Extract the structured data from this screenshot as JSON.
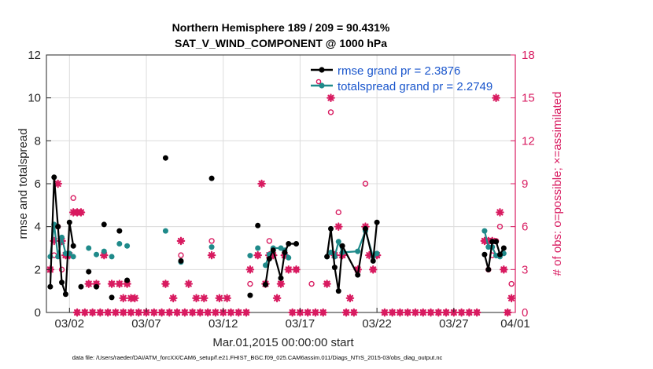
{
  "colors": {
    "rmse": "#000000",
    "spread": "#1f8a8a",
    "obs": "#d81b60",
    "legend_text": "#1a56cc",
    "left_axis": "#262626",
    "grid": "#dcdcdc"
  },
  "chart_data": {
    "type": "line",
    "title": "Northern Hemisphere 189 / 209 = 90.431%",
    "subtitle": "SAT_V_WIND_COMPONENT @ 1000 hPa",
    "xlabel": "Mar.01,2015 00:00:00 start",
    "ylabel_left": "rmse and totalspread",
    "ylabel_right": "# of obs: o=possible; ×=assimilated",
    "footer": "data file: /Users/raeder/DAI/ATM_forcXX/CAM6_setup/f.e21.FHIST_BGC.f09_025.CAM6assim.011/Diags_NTrS_2015-03/obs_diag_output.nc",
    "xlim": [
      0.5,
      31.0
    ],
    "ylim_left": [
      0,
      12
    ],
    "ylim_right": [
      0,
      18
    ],
    "grid": true,
    "xticks": [
      {
        "x": 2,
        "label": "03/02"
      },
      {
        "x": 7,
        "label": "03/07"
      },
      {
        "x": 12,
        "label": "03/12"
      },
      {
        "x": 17,
        "label": "03/17"
      },
      {
        "x": 22,
        "label": "03/22"
      },
      {
        "x": 27,
        "label": "03/27"
      },
      {
        "x": 31,
        "label": "04/01"
      }
    ],
    "yticks_left": [
      0,
      2,
      4,
      6,
      8,
      10,
      12
    ],
    "yticks_right": [
      0,
      3,
      6,
      9,
      12,
      15,
      18
    ],
    "legend": [
      {
        "label": "rmse grand pr = 2.3876"
      },
      {
        "label": "totalspread grand pr = 2.2749"
      }
    ],
    "legend_position": "top-right",
    "series": [
      {
        "name": "rmse grand pr = 2.3876",
        "axis": "left",
        "marker": "filled-circle",
        "points": [
          [
            0.75,
            1.2
          ],
          [
            1.0,
            6.3
          ],
          [
            1.25,
            4.0
          ],
          [
            1.5,
            1.4
          ],
          [
            1.75,
            0.85
          ],
          [
            2.0,
            4.2
          ],
          [
            2.25,
            3.1
          ],
          [
            2.75,
            1.2
          ],
          [
            3.25,
            1.9
          ],
          [
            3.75,
            1.2
          ],
          [
            4.25,
            4.1
          ],
          [
            4.75,
            0.7
          ],
          [
            5.25,
            3.8
          ],
          [
            5.75,
            1.5
          ],
          [
            8.25,
            7.2
          ],
          [
            9.25,
            2.4
          ],
          [
            11.25,
            6.25
          ],
          [
            13.75,
            0.8
          ],
          [
            14.25,
            4.05
          ],
          [
            14.75,
            1.3
          ],
          [
            15.0,
            2.5
          ],
          [
            15.25,
            2.9
          ],
          [
            15.75,
            1.6
          ],
          [
            16.0,
            2.8
          ],
          [
            16.25,
            3.2
          ],
          [
            16.75,
            3.2
          ],
          [
            18.75,
            2.6
          ],
          [
            19.0,
            3.9
          ],
          [
            19.25,
            2.1
          ],
          [
            19.5,
            1.0
          ],
          [
            19.75,
            3.1
          ],
          [
            20.75,
            1.75
          ],
          [
            21.25,
            3.9
          ],
          [
            21.75,
            2.4
          ],
          [
            22.0,
            4.2
          ],
          [
            29.0,
            2.7
          ],
          [
            29.25,
            2.0
          ],
          [
            29.5,
            3.3
          ],
          [
            29.75,
            3.3
          ],
          [
            30.0,
            2.7
          ],
          [
            30.25,
            3.0
          ]
        ],
        "connected_runs": [
          [
            0,
            6
          ],
          [
            19,
            25
          ],
          [
            26,
            34
          ],
          [
            35,
            40
          ]
        ]
      },
      {
        "name": "totalspread grand pr = 2.2749",
        "axis": "left",
        "marker": "filled-circle",
        "points": [
          [
            0.75,
            2.6
          ],
          [
            1.0,
            4.1
          ],
          [
            1.25,
            2.6
          ],
          [
            1.5,
            3.5
          ],
          [
            1.75,
            2.75
          ],
          [
            2.0,
            2.75
          ],
          [
            2.25,
            2.6
          ],
          [
            3.25,
            3.0
          ],
          [
            3.75,
            2.7
          ],
          [
            4.25,
            2.85
          ],
          [
            4.75,
            2.6
          ],
          [
            5.25,
            3.2
          ],
          [
            5.75,
            3.1
          ],
          [
            8.25,
            3.8
          ],
          [
            9.25,
            2.35
          ],
          [
            11.25,
            3.05
          ],
          [
            13.75,
            2.65
          ],
          [
            14.25,
            3.0
          ],
          [
            14.75,
            2.2
          ],
          [
            15.0,
            2.7
          ],
          [
            15.25,
            3.0
          ],
          [
            15.75,
            3.0
          ],
          [
            16.0,
            2.9
          ],
          [
            16.25,
            2.55
          ],
          [
            18.75,
            2.6
          ],
          [
            19.0,
            2.8
          ],
          [
            19.25,
            2.6
          ],
          [
            19.5,
            3.3
          ],
          [
            19.75,
            2.8
          ],
          [
            20.75,
            2.85
          ],
          [
            21.25,
            3.8
          ],
          [
            21.75,
            2.6
          ],
          [
            22.0,
            2.75
          ],
          [
            29.0,
            3.8
          ],
          [
            29.25,
            3.05
          ],
          [
            29.5,
            3.05
          ],
          [
            29.75,
            2.65
          ],
          [
            30.0,
            2.6
          ],
          [
            30.25,
            2.75
          ]
        ],
        "connected_runs": [
          [
            0,
            6
          ],
          [
            18,
            23
          ],
          [
            24,
            32
          ],
          [
            33,
            38
          ]
        ]
      },
      {
        "name": "possible",
        "axis": "right",
        "marker": "open-circle",
        "points": [
          [
            0.75,
            3
          ],
          [
            1.0,
            4
          ],
          [
            1.25,
            6
          ],
          [
            1.5,
            3
          ],
          [
            1.75,
            4
          ],
          [
            2.0,
            4
          ],
          [
            2.25,
            8
          ],
          [
            2.75,
            7
          ],
          [
            3.25,
            2
          ],
          [
            3.75,
            2
          ],
          [
            4.25,
            4
          ],
          [
            4.75,
            2
          ],
          [
            5.25,
            2
          ],
          [
            5.75,
            2
          ],
          [
            8.25,
            2
          ],
          [
            9.25,
            4
          ],
          [
            11.25,
            5
          ],
          [
            13.75,
            2
          ],
          [
            14.25,
            4
          ],
          [
            14.75,
            2
          ],
          [
            15.0,
            5
          ],
          [
            15.25,
            4
          ],
          [
            15.75,
            2
          ],
          [
            16.0,
            4
          ],
          [
            16.25,
            3
          ],
          [
            16.75,
            3
          ],
          [
            17.75,
            2
          ],
          [
            18.75,
            2
          ],
          [
            19.0,
            14
          ],
          [
            19.25,
            4
          ],
          [
            19.5,
            7
          ],
          [
            19.75,
            4
          ],
          [
            20.75,
            3
          ],
          [
            21.25,
            9
          ],
          [
            21.75,
            3
          ],
          [
            22.0,
            4
          ],
          [
            29.0,
            5
          ],
          [
            29.25,
            3
          ],
          [
            29.5,
            4
          ],
          [
            29.75,
            5
          ],
          [
            30.0,
            6
          ],
          [
            30.25,
            3
          ],
          [
            30.75,
            2
          ]
        ]
      },
      {
        "name": "assimilated",
        "axis": "right",
        "marker": "asterisk",
        "points": [
          [
            0.75,
            3
          ],
          [
            1.0,
            5
          ],
          [
            1.25,
            9
          ],
          [
            1.5,
            5
          ],
          [
            1.75,
            4
          ],
          [
            2.0,
            4
          ],
          [
            2.25,
            7
          ],
          [
            2.5,
            7
          ],
          [
            2.75,
            7
          ],
          [
            3.25,
            2
          ],
          [
            3.75,
            2
          ],
          [
            4.25,
            4
          ],
          [
            4.75,
            2
          ],
          [
            5.25,
            2
          ],
          [
            5.5,
            1
          ],
          [
            5.75,
            2
          ],
          [
            6.0,
            1
          ],
          [
            6.25,
            1
          ],
          [
            8.25,
            2
          ],
          [
            8.75,
            1
          ],
          [
            9.25,
            5
          ],
          [
            9.75,
            2
          ],
          [
            10.25,
            1
          ],
          [
            10.75,
            1
          ],
          [
            11.25,
            4
          ],
          [
            11.75,
            1
          ],
          [
            12.25,
            1
          ],
          [
            13.75,
            3
          ],
          [
            14.25,
            4
          ],
          [
            14.5,
            9
          ],
          [
            14.75,
            2
          ],
          [
            15.0,
            4
          ],
          [
            15.25,
            4
          ],
          [
            15.5,
            1
          ],
          [
            15.75,
            2
          ],
          [
            16.0,
            4
          ],
          [
            16.25,
            3
          ],
          [
            16.75,
            3
          ],
          [
            18.75,
            2
          ],
          [
            19.0,
            15
          ],
          [
            19.25,
            4
          ],
          [
            19.5,
            6
          ],
          [
            19.75,
            4
          ],
          [
            20.25,
            1
          ],
          [
            20.75,
            3
          ],
          [
            21.25,
            6
          ],
          [
            21.5,
            4
          ],
          [
            21.75,
            3
          ],
          [
            22.0,
            4
          ],
          [
            29.0,
            5
          ],
          [
            29.25,
            5
          ],
          [
            29.5,
            5
          ],
          [
            29.75,
            15
          ],
          [
            30.0,
            7
          ],
          [
            30.25,
            3
          ],
          [
            30.75,
            1
          ]
        ]
      },
      {
        "name": "zero-count days",
        "axis": "right",
        "marker": "open-circle-with-asterisk",
        "points": [
          [
            2.5,
            0
          ],
          [
            3.0,
            0
          ],
          [
            3.5,
            0
          ],
          [
            4.0,
            0
          ],
          [
            4.5,
            0
          ],
          [
            5.0,
            0
          ],
          [
            5.5,
            0
          ],
          [
            6.0,
            0
          ],
          [
            6.5,
            0
          ],
          [
            7.0,
            0
          ],
          [
            7.5,
            0
          ],
          [
            8.0,
            0
          ],
          [
            8.5,
            0
          ],
          [
            9.0,
            0
          ],
          [
            9.5,
            0
          ],
          [
            10.0,
            0
          ],
          [
            10.5,
            0
          ],
          [
            11.0,
            0
          ],
          [
            11.5,
            0
          ],
          [
            12.0,
            0
          ],
          [
            12.5,
            0
          ],
          [
            13.0,
            0
          ],
          [
            13.5,
            0
          ],
          [
            16.5,
            0
          ],
          [
            17.0,
            0
          ],
          [
            17.5,
            0
          ],
          [
            18.0,
            0
          ],
          [
            18.5,
            0
          ],
          [
            20.0,
            0
          ],
          [
            20.5,
            0
          ],
          [
            22.5,
            0
          ],
          [
            23.0,
            0
          ],
          [
            23.5,
            0
          ],
          [
            24.0,
            0
          ],
          [
            24.5,
            0
          ],
          [
            25.0,
            0
          ],
          [
            25.5,
            0
          ],
          [
            26.0,
            0
          ],
          [
            26.5,
            0
          ],
          [
            27.0,
            0
          ],
          [
            27.5,
            0
          ],
          [
            28.0,
            0
          ],
          [
            28.5,
            0
          ],
          [
            30.5,
            0
          ]
        ]
      }
    ]
  }
}
